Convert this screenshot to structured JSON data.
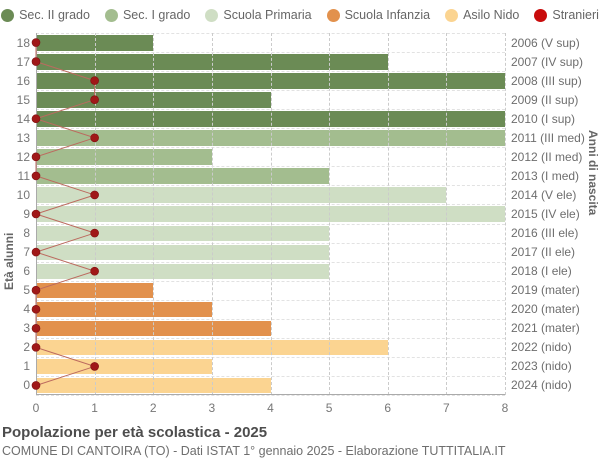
{
  "legend": {
    "items": [
      {
        "label": "Sec. II grado",
        "color": "#6b8b55",
        "key": "sec2"
      },
      {
        "label": "Sec. I grado",
        "color": "#a3bd8f",
        "key": "sec1"
      },
      {
        "label": "Scuola Primaria",
        "color": "#cfdec4",
        "key": "primaria"
      },
      {
        "label": "Scuola Infanzia",
        "color": "#e2914d",
        "key": "infanzia"
      },
      {
        "label": "Asilo Nido",
        "color": "#fbd491",
        "key": "nido"
      },
      {
        "label": "Stranieri",
        "color": "#c90c0c",
        "key": "stranieri"
      }
    ]
  },
  "chart_data": {
    "type": "bar",
    "orientation": "horizontal",
    "title": "Popolazione per età scolastica - 2025",
    "subtitle": "COMUNE DI CANTOIRA (TO) - Dati ISTAT 1° gennaio 2025 - Elaborazione TUTTITALIA.IT",
    "left_axis_label": "Età alunni",
    "right_axis_label": "Anni di nascita",
    "xlim": [
      0,
      8
    ],
    "x_ticks": [
      0,
      1,
      2,
      3,
      4,
      5,
      6,
      7,
      8
    ],
    "grid": true,
    "legend_position": "top",
    "group_colors": {
      "sec2": "#6b8b55",
      "sec1": "#a3bd8f",
      "primaria": "#cfdec4",
      "infanzia": "#e2914d",
      "nido": "#fbd491"
    },
    "stranieri_dot_color": "#a01818",
    "stranieri_line_color": "#bc6a5f",
    "rows": [
      {
        "age": 18,
        "value": 2,
        "group": "sec2",
        "year_label": "2006 (V sup)",
        "stranieri": 0
      },
      {
        "age": 17,
        "value": 6,
        "group": "sec2",
        "year_label": "2007 (IV sup)",
        "stranieri": 0
      },
      {
        "age": 16,
        "value": 8,
        "group": "sec2",
        "year_label": "2008 (III sup)",
        "stranieri": 1
      },
      {
        "age": 15,
        "value": 4,
        "group": "sec2",
        "year_label": "2009 (II sup)",
        "stranieri": 1
      },
      {
        "age": 14,
        "value": 8,
        "group": "sec2",
        "year_label": "2010 (I sup)",
        "stranieri": 0
      },
      {
        "age": 13,
        "value": 8,
        "group": "sec1",
        "year_label": "2011 (III med)",
        "stranieri": 1
      },
      {
        "age": 12,
        "value": 3,
        "group": "sec1",
        "year_label": "2012 (II med)",
        "stranieri": 0
      },
      {
        "age": 11,
        "value": 5,
        "group": "sec1",
        "year_label": "2013 (I med)",
        "stranieri": 0
      },
      {
        "age": 10,
        "value": 7,
        "group": "primaria",
        "year_label": "2014 (V ele)",
        "stranieri": 1
      },
      {
        "age": 9,
        "value": 8,
        "group": "primaria",
        "year_label": "2015 (IV ele)",
        "stranieri": 0
      },
      {
        "age": 8,
        "value": 5,
        "group": "primaria",
        "year_label": "2016 (III ele)",
        "stranieri": 1
      },
      {
        "age": 7,
        "value": 5,
        "group": "primaria",
        "year_label": "2017 (II ele)",
        "stranieri": 0
      },
      {
        "age": 6,
        "value": 5,
        "group": "primaria",
        "year_label": "2018 (I ele)",
        "stranieri": 1
      },
      {
        "age": 5,
        "value": 2,
        "group": "infanzia",
        "year_label": "2019 (mater)",
        "stranieri": 0
      },
      {
        "age": 4,
        "value": 3,
        "group": "infanzia",
        "year_label": "2020 (mater)",
        "stranieri": 0
      },
      {
        "age": 3,
        "value": 4,
        "group": "infanzia",
        "year_label": "2021 (mater)",
        "stranieri": 0
      },
      {
        "age": 2,
        "value": 6,
        "group": "nido",
        "year_label": "2022 (nido)",
        "stranieri": 0
      },
      {
        "age": 1,
        "value": 3,
        "group": "nido",
        "year_label": "2023 (nido)",
        "stranieri": 1
      },
      {
        "age": 0,
        "value": 4,
        "group": "nido",
        "year_label": "2024 (nido)",
        "stranieri": 0
      }
    ]
  }
}
